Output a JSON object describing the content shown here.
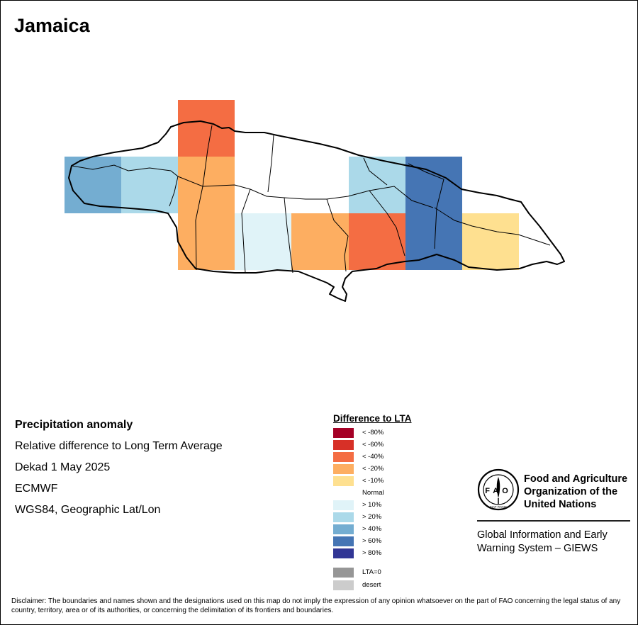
{
  "map": {
    "title": "Jamaica",
    "cells": [
      {
        "id": "c-r0-c2",
        "class": "< -40%",
        "color": "#f46d43"
      },
      {
        "id": "c-r1-c0",
        "class": "> 40%",
        "color": "#74add1"
      },
      {
        "id": "c-r1-c1",
        "class": "> 20%",
        "color": "#abd9e9"
      },
      {
        "id": "c-r1-c2",
        "class": "< -20%",
        "color": "#fdae61"
      },
      {
        "id": "c-r1-c5",
        "class": "> 20%",
        "color": "#abd9e9"
      },
      {
        "id": "c-r1-c6",
        "class": "> 60%",
        "color": "#4575b4"
      },
      {
        "id": "c-r2-c2",
        "class": "< -20%",
        "color": "#fdae61"
      },
      {
        "id": "c-r2-c3",
        "class": "> 10%",
        "color": "#e0f3f8"
      },
      {
        "id": "c-r2-c4",
        "class": "< -20%",
        "color": "#fdae61"
      },
      {
        "id": "c-r2-c5",
        "class": "< -40%",
        "color": "#f46d43"
      },
      {
        "id": "c-r2-c6",
        "class": "> 60%",
        "color": "#4575b4"
      },
      {
        "id": "c-r2-c7",
        "class": "< -10%",
        "color": "#fee090"
      }
    ]
  },
  "info": {
    "title": "Precipitation anomaly",
    "subtitle": "Relative difference to Long Term Average",
    "period": "Dekad 1 May 2025",
    "source": "ECMWF",
    "projection": "WGS84, Geographic Lat/Lon"
  },
  "legend": {
    "title": "Difference to LTA",
    "items": [
      {
        "label": "< -80%",
        "color": "#a50026"
      },
      {
        "label": "< -60%",
        "color": "#d73027"
      },
      {
        "label": "< -40%",
        "color": "#f46d43"
      },
      {
        "label": "< -20%",
        "color": "#fdae61"
      },
      {
        "label": "< -10%",
        "color": "#fee090"
      },
      {
        "label": "Normal",
        "color": "#ffffff"
      },
      {
        "label": "> 10%",
        "color": "#e0f3f8"
      },
      {
        "label": "> 20%",
        "color": "#abd9e9"
      },
      {
        "label": "> 40%",
        "color": "#74add1"
      },
      {
        "label": "> 60%",
        "color": "#4575b4"
      },
      {
        "label": "> 80%",
        "color": "#313695"
      },
      {
        "label": "LTA=0",
        "color": "#969696"
      },
      {
        "label": "desert",
        "color": "#cccccc"
      }
    ]
  },
  "org": {
    "logo_text": "FAO",
    "logo_motto": "FIAT PANIS",
    "name_line1": "Food and Agriculture",
    "name_line2": "Organization of the",
    "name_line3": "United Nations",
    "system_line1": "Global Information and Early",
    "system_line2": "Warning System – GIEWS"
  },
  "disclaimer": "Disclaimer: The boundaries and names shown and the designations used on this map do not imply the expression of any opinion whatsoever on the part of FAO concerning the legal status of any country, territory, area or of its authorities, or concerning the delimitation of its frontiers and boundaries."
}
